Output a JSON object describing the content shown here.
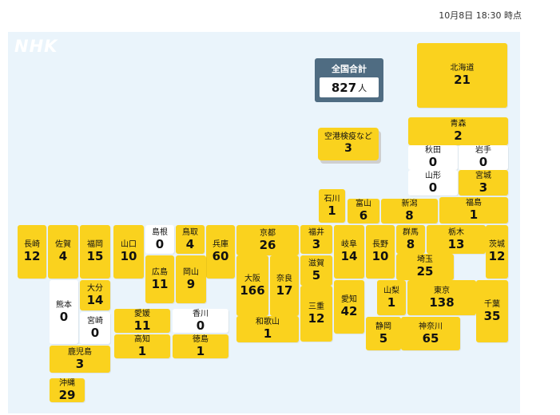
{
  "timestamp": "10月8日 18:30 時点",
  "logo": "NHK",
  "total": {
    "label": "全国合計",
    "value": "827",
    "unit": "人"
  },
  "airport": {
    "name": "空港検疫など",
    "value": "3"
  },
  "colors": {
    "positive": "#fad21e",
    "zero": "#ffffff",
    "panel": "#eaf4fb",
    "total_box": "#4f6c82"
  },
  "prefectures": {
    "hokkaido": {
      "name": "北海道",
      "value": "21"
    },
    "aomori": {
      "name": "青森",
      "value": "2"
    },
    "akita": {
      "name": "秋田",
      "value": "0"
    },
    "iwate": {
      "name": "岩手",
      "value": "0"
    },
    "yamagata": {
      "name": "山形",
      "value": "0"
    },
    "miyagi": {
      "name": "宮城",
      "value": "3"
    },
    "ishikawa": {
      "name": "石川",
      "value": "1"
    },
    "toyama": {
      "name": "富山",
      "value": "6"
    },
    "niigata": {
      "name": "新潟",
      "value": "8"
    },
    "fukushima": {
      "name": "福島",
      "value": "1"
    },
    "nagasaki": {
      "name": "長崎",
      "value": "12"
    },
    "saga": {
      "name": "佐賀",
      "value": "4"
    },
    "fukuoka": {
      "name": "福岡",
      "value": "15"
    },
    "yamaguchi": {
      "name": "山口",
      "value": "10"
    },
    "shimane": {
      "name": "島根",
      "value": "0"
    },
    "tottori": {
      "name": "鳥取",
      "value": "4"
    },
    "hyogo": {
      "name": "兵庫",
      "value": "60"
    },
    "kyoto": {
      "name": "京都",
      "value": "26"
    },
    "fukui": {
      "name": "福井",
      "value": "3"
    },
    "gifu": {
      "name": "岐阜",
      "value": "14"
    },
    "nagano": {
      "name": "長野",
      "value": "10"
    },
    "gunma": {
      "name": "群馬",
      "value": "8"
    },
    "tochigi": {
      "name": "栃木",
      "value": "13"
    },
    "ibaraki": {
      "name": "茨城",
      "value": "12"
    },
    "saitama": {
      "name": "埼玉",
      "value": "25"
    },
    "hiroshima": {
      "name": "広島",
      "value": "11"
    },
    "okayama": {
      "name": "岡山",
      "value": "9"
    },
    "osaka": {
      "name": "大阪",
      "value": "166"
    },
    "nara": {
      "name": "奈良",
      "value": "17"
    },
    "shiga": {
      "name": "滋賀",
      "value": "5"
    },
    "mie": {
      "name": "三重",
      "value": "12"
    },
    "aichi": {
      "name": "愛知",
      "value": "42"
    },
    "yamanashi": {
      "name": "山梨",
      "value": "1"
    },
    "tokyo": {
      "name": "東京",
      "value": "138"
    },
    "chiba": {
      "name": "千葉",
      "value": "35"
    },
    "kumamoto": {
      "name": "熊本",
      "value": "0"
    },
    "oita": {
      "name": "大分",
      "value": "14"
    },
    "miyazaki": {
      "name": "宮崎",
      "value": "0"
    },
    "kagoshima": {
      "name": "鹿児島",
      "value": "3"
    },
    "okinawa": {
      "name": "沖縄",
      "value": "29"
    },
    "ehime": {
      "name": "愛媛",
      "value": "11"
    },
    "kagawa": {
      "name": "香川",
      "value": "0"
    },
    "kochi": {
      "name": "高知",
      "value": "1"
    },
    "tokushima": {
      "name": "徳島",
      "value": "1"
    },
    "wakayama": {
      "name": "和歌山",
      "value": "1"
    },
    "shizuoka": {
      "name": "静岡",
      "value": "5"
    },
    "kanagawa": {
      "name": "神奈川",
      "value": "65"
    }
  }
}
